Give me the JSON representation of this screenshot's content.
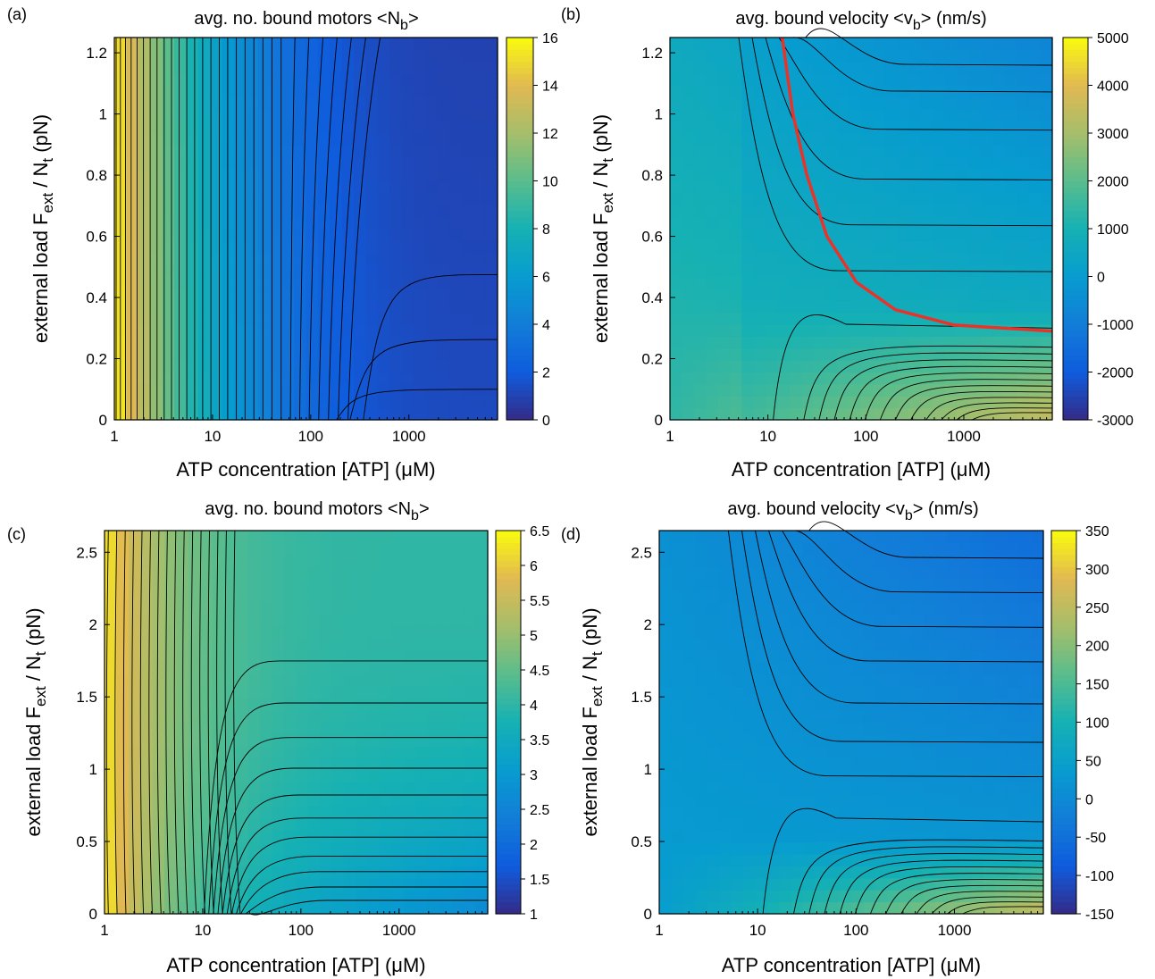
{
  "chart_data": [
    {
      "type": "heatmap",
      "panel_label": "(a)",
      "title": "avg. no. bound motors  <N_b>",
      "title_parts": [
        "avg. no. bound motors  <N",
        "b",
        ">"
      ],
      "xlabel": "ATP concentration  [ATP] (μM)",
      "ylabel_parts": [
        "external load  F",
        "ext",
        " / N",
        "t",
        " (pN)"
      ],
      "x_scale": "log",
      "xlim": [
        1,
        8000
      ],
      "ylim": [
        0,
        1.25
      ],
      "x_ticks": [
        1,
        10,
        100,
        1000
      ],
      "x_tick_labels": [
        "1",
        "10",
        "100",
        "1000"
      ],
      "y_ticks": [
        0,
        0.2,
        0.4,
        0.6,
        0.8,
        1,
        1.2
      ],
      "y_tick_labels": [
        "0",
        "0.2",
        "0.4",
        "0.6",
        "0.8",
        "1",
        "1.2"
      ],
      "colorbar": {
        "min": 0,
        "max": 16,
        "ticks": [
          0,
          2,
          4,
          6,
          8,
          10,
          12,
          14,
          16
        ],
        "tick_labels": [
          "0",
          "2",
          "4",
          "6",
          "8",
          "10",
          "12",
          "14",
          "16"
        ]
      },
      "contours": "black lines",
      "highlight_curve": null
    },
    {
      "type": "heatmap",
      "panel_label": "(b)",
      "title": "avg. bound velocity <v_b> (nm/s)",
      "title_parts": [
        "avg. bound velocity <v",
        "b",
        "> (nm/s)"
      ],
      "xlabel": "ATP concentration  [ATP] (μM)",
      "ylabel_parts": [
        "external load  F",
        "ext",
        " / N",
        "t",
        " (pN)"
      ],
      "x_scale": "log",
      "xlim": [
        1,
        8000
      ],
      "ylim": [
        0,
        1.25
      ],
      "x_ticks": [
        1,
        10,
        100,
        1000
      ],
      "x_tick_labels": [
        "1",
        "10",
        "100",
        "1000"
      ],
      "y_ticks": [
        0,
        0.2,
        0.4,
        0.6,
        0.8,
        1,
        1.2
      ],
      "y_tick_labels": [
        "0",
        "0.2",
        "0.4",
        "0.6",
        "0.8",
        "1",
        "1.2"
      ],
      "colorbar": {
        "min": -3000,
        "max": 5000,
        "ticks": [
          -3000,
          -2000,
          -1000,
          0,
          1000,
          2000,
          3000,
          4000,
          5000
        ],
        "tick_labels": [
          "-3000",
          "-2000",
          "-1000",
          "0",
          "1000",
          "2000",
          "3000",
          "4000",
          "5000"
        ]
      },
      "contours": "black lines",
      "highlight_curve": {
        "color": "#e8332a",
        "description_value": "zero-velocity contour",
        "points": [
          [
            14,
            1.25
          ],
          [
            18,
            1.0
          ],
          [
            25,
            0.8
          ],
          [
            40,
            0.6
          ],
          [
            80,
            0.45
          ],
          [
            200,
            0.36
          ],
          [
            800,
            0.31
          ],
          [
            8000,
            0.29
          ]
        ]
      }
    },
    {
      "type": "heatmap",
      "panel_label": "(c)",
      "title": "avg. no. bound motors  <N_b>",
      "title_parts": [
        "avg. no. bound motors  <N",
        "b",
        ">"
      ],
      "xlabel": "ATP concentration  [ATP] (μM)",
      "ylabel_parts": [
        "external load  F",
        "ext",
        " / N",
        "t",
        " (pN)"
      ],
      "x_scale": "log",
      "xlim": [
        1,
        8000
      ],
      "ylim": [
        0,
        2.65
      ],
      "x_ticks": [
        1,
        10,
        100,
        1000
      ],
      "x_tick_labels": [
        "1",
        "10",
        "100",
        "1000"
      ],
      "y_ticks": [
        0,
        0.5,
        1,
        1.5,
        2,
        2.5
      ],
      "y_tick_labels": [
        "0",
        "0.5",
        "1",
        "1.5",
        "2",
        "2.5"
      ],
      "colorbar": {
        "min": 1,
        "max": 6.5,
        "ticks": [
          1,
          1.5,
          2,
          2.5,
          3,
          3.5,
          4,
          4.5,
          5,
          5.5,
          6,
          6.5
        ],
        "tick_labels": [
          "1",
          "1.5",
          "2",
          "2.5",
          "3",
          "3.5",
          "4",
          "4.5",
          "5",
          "5.5",
          "6",
          "6.5"
        ]
      },
      "contours": "black lines",
      "highlight_curve": null
    },
    {
      "type": "heatmap",
      "panel_label": "(d)",
      "title": "avg. bound velocity <v_b> (nm/s)",
      "title_parts": [
        "avg. bound velocity <v",
        "b",
        "> (nm/s)"
      ],
      "xlabel": "ATP concentration  [ATP] (μM)",
      "ylabel_parts": [
        "external load  F",
        "ext",
        " / N",
        "t",
        " (pN)"
      ],
      "x_scale": "log",
      "xlim": [
        1,
        8000
      ],
      "ylim": [
        0,
        2.65
      ],
      "x_ticks": [
        1,
        10,
        100,
        1000
      ],
      "x_tick_labels": [
        "1",
        "10",
        "100",
        "1000"
      ],
      "y_ticks": [
        0,
        0.5,
        1,
        1.5,
        2,
        2.5
      ],
      "y_tick_labels": [
        "0",
        "0.5",
        "1",
        "1.5",
        "2",
        "2.5"
      ],
      "colorbar": {
        "min": -150,
        "max": 350,
        "ticks": [
          -150,
          -100,
          -50,
          0,
          50,
          100,
          150,
          200,
          250,
          300,
          350
        ],
        "tick_labels": [
          "-150",
          "-100",
          "-50",
          "0",
          "50",
          "100",
          "150",
          "200",
          "250",
          "300",
          "350"
        ]
      },
      "contours": "black lines",
      "highlight_curve": null
    }
  ]
}
